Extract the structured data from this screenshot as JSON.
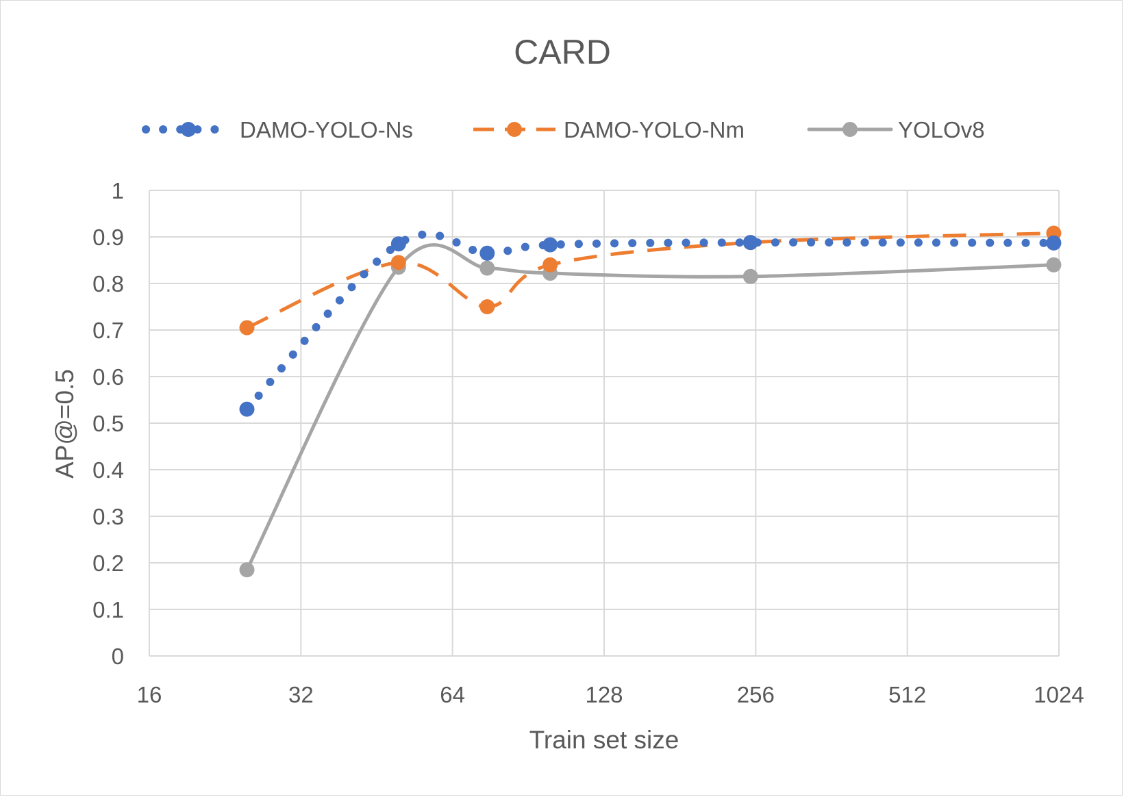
{
  "chart_data": {
    "type": "line",
    "title": "CARD",
    "xlabel": "Train set size",
    "ylabel": "AP@=0.5",
    "x_scale": "log2",
    "xlim": [
      16,
      1024
    ],
    "ylim": [
      0,
      1
    ],
    "x_ticks": [
      "16",
      "32",
      "64",
      "128",
      "256",
      "512",
      "1024"
    ],
    "y_ticks": [
      "0",
      "0.1",
      "0.2",
      "0.3",
      "0.4",
      "0.5",
      "0.6",
      "0.7",
      "0.8",
      "0.9",
      "1"
    ],
    "grid": true,
    "legend_position": "top",
    "series": [
      {
        "name": "DAMO-YOLO-Ns",
        "color": "#4472c4",
        "style": "round-dot",
        "smooth": true,
        "x": [
          25,
          50,
          75,
          100,
          250,
          1000
        ],
        "y": [
          0.53,
          0.885,
          0.865,
          0.883,
          0.888,
          0.887
        ]
      },
      {
        "name": "DAMO-YOLO-Nm",
        "color": "#ed7d31",
        "style": "dash",
        "smooth": true,
        "x": [
          25,
          50,
          75,
          100,
          250,
          1000
        ],
        "y": [
          0.705,
          0.845,
          0.75,
          0.84,
          0.888,
          0.908
        ]
      },
      {
        "name": "YOLOv8",
        "color": "#a5a5a5",
        "style": "solid",
        "smooth": true,
        "x": [
          25,
          50,
          75,
          100,
          250,
          1000
        ],
        "y": [
          0.185,
          0.835,
          0.833,
          0.822,
          0.815,
          0.84
        ]
      }
    ]
  }
}
